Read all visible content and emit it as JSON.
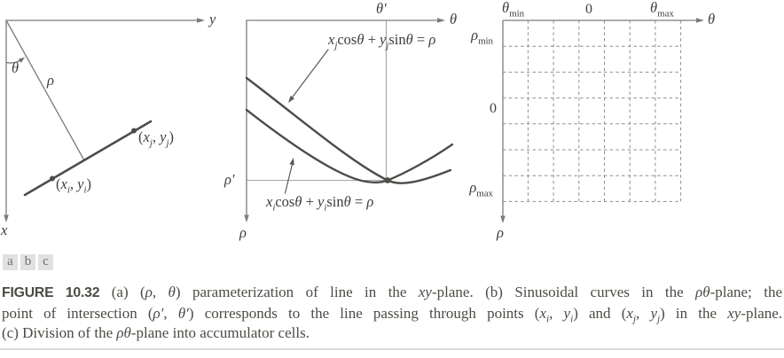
{
  "panel_a": {
    "y_axis": "y",
    "x_axis": "x",
    "theta": "θ",
    "rho": "ρ",
    "point_i": [
      {
        "t": "(",
        "s": "up"
      },
      {
        "t": "x",
        "s": "i"
      },
      {
        "t": "i",
        "s": "sub"
      },
      {
        "t": ", ",
        "s": "up"
      },
      {
        "t": "y",
        "s": "i"
      },
      {
        "t": "i",
        "s": "sub"
      },
      {
        "t": ")",
        "s": "up"
      }
    ],
    "point_j": [
      {
        "t": "(",
        "s": "up"
      },
      {
        "t": "x",
        "s": "i"
      },
      {
        "t": "j",
        "s": "sub"
      },
      {
        "t": ", ",
        "s": "up"
      },
      {
        "t": "y",
        "s": "i"
      },
      {
        "t": "j",
        "s": "sub"
      },
      {
        "t": ")",
        "s": "up"
      }
    ]
  },
  "panel_b": {
    "theta_prime": "θ′",
    "theta": "θ",
    "rho_prime": "ρ′",
    "rho": "ρ",
    "eq_upper": [
      {
        "t": "x",
        "s": "i"
      },
      {
        "t": "j",
        "s": "sub"
      },
      {
        "t": "cos",
        "s": "up"
      },
      {
        "t": "θ",
        "s": "i"
      },
      {
        "t": " + ",
        "s": "up"
      },
      {
        "t": "y",
        "s": "i"
      },
      {
        "t": "j",
        "s": "sub"
      },
      {
        "t": "sin",
        "s": "up"
      },
      {
        "t": "θ",
        "s": "i"
      },
      {
        "t": " = ",
        "s": "up"
      },
      {
        "t": "ρ",
        "s": "i"
      }
    ],
    "eq_lower": [
      {
        "t": "x",
        "s": "i"
      },
      {
        "t": "i",
        "s": "sub"
      },
      {
        "t": "cos",
        "s": "up"
      },
      {
        "t": "θ",
        "s": "i"
      },
      {
        "t": " + ",
        "s": "up"
      },
      {
        "t": "y",
        "s": "i"
      },
      {
        "t": "i",
        "s": "sub"
      },
      {
        "t": "sin",
        "s": "up"
      },
      {
        "t": "θ",
        "s": "i"
      },
      {
        "t": " = ",
        "s": "up"
      },
      {
        "t": "ρ",
        "s": "i"
      }
    ]
  },
  "panel_c": {
    "theta_min": [
      {
        "t": "θ",
        "s": "i"
      },
      {
        "t": "min",
        "s": "subup"
      }
    ],
    "zero_top": "0",
    "theta_max": [
      {
        "t": "θ",
        "s": "i"
      },
      {
        "t": "max",
        "s": "subup"
      }
    ],
    "theta": "θ",
    "rho_min": [
      {
        "t": "ρ",
        "s": "i"
      },
      {
        "t": "min",
        "s": "subup"
      }
    ],
    "zero_left": "0",
    "rho_max": [
      {
        "t": "ρ",
        "s": "i"
      },
      {
        "t": "max",
        "s": "subup"
      }
    ],
    "rho": "ρ"
  },
  "panel_letters": [
    "a",
    "b",
    "c"
  ],
  "caption": {
    "line1": [
      {
        "t": "FIGURE 10.32",
        "s": "b"
      },
      {
        "t": "  (a) (",
        "s": "up"
      },
      {
        "t": "ρ",
        "s": "i"
      },
      {
        "t": ", ",
        "s": "up"
      },
      {
        "t": "θ",
        "s": "i"
      },
      {
        "t": ") parameterization of line in the ",
        "s": "up"
      },
      {
        "t": "xy",
        "s": "i"
      },
      {
        "t": "-plane. (b) Sinusoidal curves in the ",
        "s": "up"
      },
      {
        "t": "ρθ",
        "s": "i"
      },
      {
        "t": "-plane; the",
        "s": "up"
      }
    ],
    "line2": [
      {
        "t": "point of intersection (",
        "s": "up"
      },
      {
        "t": "ρ′",
        "s": "i"
      },
      {
        "t": ", ",
        "s": "up"
      },
      {
        "t": "θ′",
        "s": "i"
      },
      {
        "t": ") corresponds to the line passing through points (",
        "s": "up"
      },
      {
        "t": "x",
        "s": "i"
      },
      {
        "t": "i",
        "s": "sub"
      },
      {
        "t": ", ",
        "s": "up"
      },
      {
        "t": "y",
        "s": "i"
      },
      {
        "t": "i",
        "s": "sub"
      },
      {
        "t": ") and (",
        "s": "up"
      },
      {
        "t": "x",
        "s": "i"
      },
      {
        "t": "j",
        "s": "sub"
      },
      {
        "t": ", ",
        "s": "up"
      },
      {
        "t": "y",
        "s": "i"
      },
      {
        "t": "j",
        "s": "sub"
      },
      {
        "t": ") in the ",
        "s": "up"
      },
      {
        "t": "xy",
        "s": "i"
      },
      {
        "t": "-plane.",
        "s": "up"
      }
    ],
    "line3": [
      {
        "t": "(c) Division of the ",
        "s": "up"
      },
      {
        "t": "ρθ",
        "s": "i"
      },
      {
        "t": "-plane into accumulator cells.",
        "s": "up"
      }
    ]
  },
  "colors": {
    "axis_gray": "#7c7c7c",
    "curve_dark": "#4c4c48",
    "guide_gray": "#a6a6a6",
    "grid_dash_gray": "#8e8e8e",
    "caption_text": "#4b4b45",
    "letter_box_bg": "#e1e1df"
  }
}
